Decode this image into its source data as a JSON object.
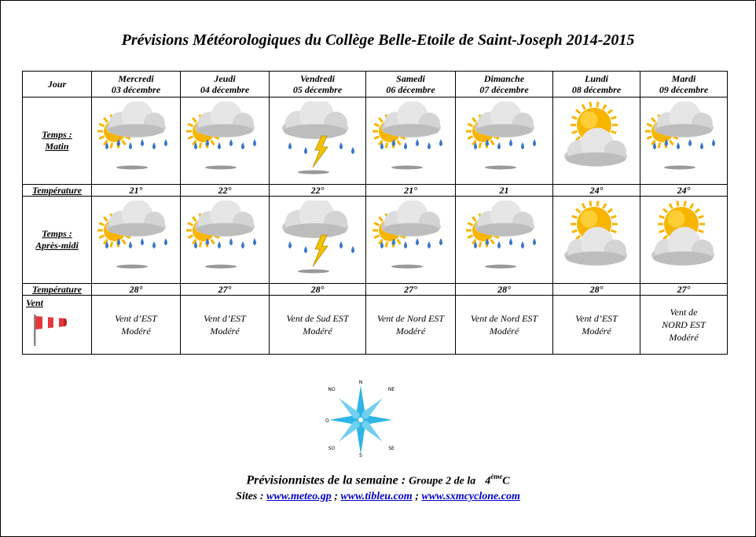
{
  "title": "Prévisions Météorologiques du Collège Belle-Etoile de Saint-Joseph 2014-2015",
  "header_label": "Jour",
  "days": [
    {
      "name": "Mercredi",
      "date": "03 décembre"
    },
    {
      "name": "Jeudi",
      "date": "04 décembre"
    },
    {
      "name": "Vendredi",
      "date": "05 décembre"
    },
    {
      "name": "Samedi",
      "date": "06  décembre"
    },
    {
      "name": "Dimanche",
      "date": "07 décembre"
    },
    {
      "name": "Lundi",
      "date": "08 décembre"
    },
    {
      "name": "Mardi",
      "date": "09 décembre"
    }
  ],
  "rows": {
    "morning_label_1": "Temps :",
    "morning_label_2": "Matin",
    "afternoon_label_1": "Temps :",
    "afternoon_label_2": "Après-midi",
    "temp_label": "Température",
    "wind_label": "Vent"
  },
  "morning_icons": [
    "sun-cloud-rain-icon",
    "sun-cloud-rain-icon",
    "thunderstorm-icon",
    "sun-cloud-rain-icon",
    "sun-cloud-rain-icon",
    "sun-behind-cloud-icon",
    "sun-cloud-rain-icon"
  ],
  "afternoon_icons": [
    "sun-cloud-rain-icon",
    "sun-cloud-rain-icon",
    "thunderstorm-icon",
    "sun-cloud-rain-icon",
    "sun-cloud-rain-icon",
    "sun-behind-cloud-icon",
    "sun-behind-cloud-icon"
  ],
  "morning_temps": [
    "21°",
    "22°",
    "22°",
    "21°",
    "21",
    "24°",
    "24°"
  ],
  "afternoon_temps": [
    "28°",
    "27°",
    "28°",
    "27°",
    "28°",
    "28°",
    "27°"
  ],
  "winds": [
    {
      "l1": "Vent d’EST",
      "l2": "Modéré",
      "l3": ""
    },
    {
      "l1": "Vent d’EST",
      "l2": "Modéré",
      "l3": ""
    },
    {
      "l1": "Vent de Sud EST",
      "l2": "Modéré",
      "l3": ""
    },
    {
      "l1": "Vent de Nord EST",
      "l2": "Modéré",
      "l3": ""
    },
    {
      "l1": "Vent de Nord EST",
      "l2": "Modéré",
      "l3": ""
    },
    {
      "l1": "Vent d’EST",
      "l2": "Modéré",
      "l3": ""
    },
    {
      "l1": "Vent de",
      "l2": "NORD EST",
      "l3": "Modéré"
    }
  ],
  "compass": {
    "N": "N",
    "NE": "NE",
    "E": "E",
    "SE": "SE",
    "S": "S",
    "SO": "SO",
    "O": "O",
    "NO": "NO"
  },
  "footer": {
    "forecasters": "Prévisionnistes de la semaine :",
    "group": "Groupe 2 de la",
    "class_num": "4",
    "class_sup": "ème",
    "class_letter": "C",
    "sites_label": "Sites :",
    "sep": ";",
    "links": [
      "www.meteo.gp",
      "www.tibleu.com",
      "www.sxmcyclone.com"
    ]
  },
  "colors": {
    "sun": "#f7b500",
    "rain": "#3a78c8",
    "bolt": "#f2c200",
    "cloud": "#d9d9d9",
    "link": "#0000cc"
  }
}
